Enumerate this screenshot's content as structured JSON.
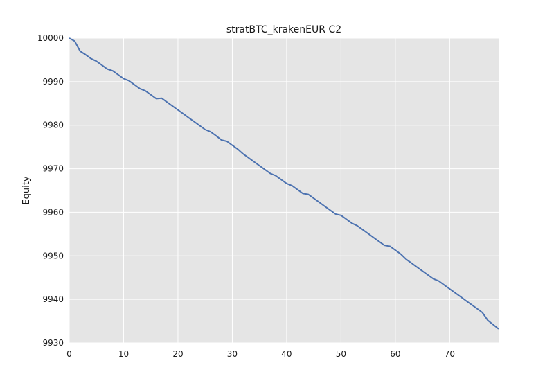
{
  "chart_data": {
    "type": "line",
    "title": "stratBTC_krakenEUR C2",
    "xlabel": "",
    "ylabel": "Equity",
    "xlim": [
      0,
      79
    ],
    "ylim": [
      9930,
      10000
    ],
    "xticks": [
      0,
      10,
      20,
      30,
      40,
      50,
      60,
      70
    ],
    "yticks": [
      9930,
      9940,
      9950,
      9960,
      9970,
      9980,
      9990,
      10000
    ],
    "grid": true,
    "colors": {
      "background": "#e5e5e5",
      "grid": "#ffffff",
      "line": "#4c72b0"
    },
    "series": [
      {
        "x": [
          0,
          1,
          2,
          3,
          4,
          5,
          6,
          7,
          8,
          9,
          10,
          11,
          12,
          13,
          14,
          15,
          16,
          17,
          18,
          19,
          20,
          21,
          22,
          23,
          24,
          25,
          26,
          27,
          28,
          29,
          30,
          31,
          32,
          33,
          34,
          35,
          36,
          37,
          38,
          39,
          40,
          41,
          42,
          43,
          44,
          45,
          46,
          47,
          48,
          49,
          50,
          51,
          52,
          53,
          54,
          55,
          56,
          57,
          58,
          59,
          60,
          61,
          62,
          63,
          64,
          65,
          66,
          67,
          68,
          69,
          70,
          71,
          72,
          73,
          74,
          75,
          76,
          77,
          78,
          79
        ],
        "y": [
          10000,
          9999.3,
          9997.0,
          9996.2,
          9995.3,
          9994.7,
          9993.8,
          9992.9,
          9992.5,
          9991.6,
          9990.7,
          9990.2,
          9989.3,
          9988.4,
          9987.9,
          9987.0,
          9986.1,
          9986.2,
          9985.3,
          9984.4,
          9983.5,
          9982.6,
          9981.7,
          9980.8,
          9979.9,
          9979.0,
          9978.5,
          9977.6,
          9976.6,
          9976.3,
          9975.4,
          9974.5,
          9973.4,
          9972.5,
          9971.6,
          9970.7,
          9969.8,
          9968.9,
          9968.4,
          9967.5,
          9966.6,
          9966.1,
          9965.2,
          9964.3,
          9964.1,
          9963.2,
          9962.3,
          9961.4,
          9960.5,
          9959.6,
          9959.3,
          9958.4,
          9957.5,
          9956.9,
          9956.0,
          9955.1,
          9954.2,
          9953.3,
          9952.4,
          9952.2,
          9951.3,
          9950.4,
          9949.2,
          9948.3,
          9947.4,
          9946.5,
          9945.6,
          9944.7,
          9944.2,
          9943.3,
          9942.4,
          9941.5,
          9940.6,
          9939.7,
          9938.8,
          9937.9,
          9937.0,
          9935.2,
          9934.2,
          9933.2
        ]
      }
    ]
  }
}
